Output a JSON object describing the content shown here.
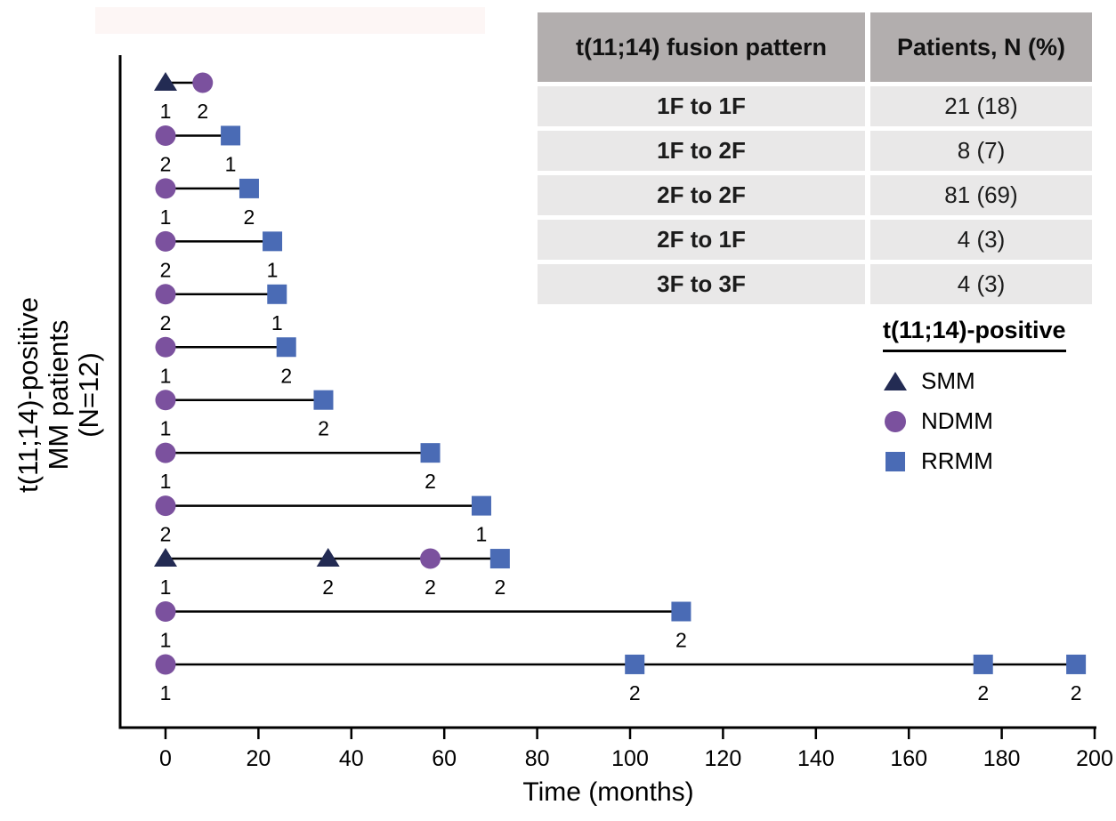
{
  "colors": {
    "smm_navy": "#232b53",
    "ndmm_purple": "#7b519e",
    "rrmm_blue": "#4a6bb5",
    "table_header_bg": "#b2aeae",
    "table_row_bg": "#e9e8e8",
    "axis_black": "#000000",
    "band_pink": "#fdf6f5"
  },
  "table": {
    "headers": [
      "t(11;14) fusion pattern",
      "Patients, N (%)"
    ],
    "rows": [
      [
        "1F to 1F",
        "21 (18)"
      ],
      [
        "1F to 2F",
        "8 (7)"
      ],
      [
        "2F to 2F",
        "81 (69)"
      ],
      [
        "2F to 1F",
        "4 (3)"
      ],
      [
        "3F to 3F",
        "4 (3)"
      ]
    ]
  },
  "legend": {
    "title": "t(11;14)-positive",
    "items": [
      {
        "label": "SMM",
        "marker": "triangle"
      },
      {
        "label": "NDMM",
        "marker": "circle"
      },
      {
        "label": "RRMM",
        "marker": "square"
      }
    ]
  },
  "chart_data": {
    "type": "scatter",
    "subtype": "swimmer-timeline",
    "x_label": "Time (months)",
    "y_label_lines": [
      "t(11;14)-positive",
      "MM patients",
      "(N=12)"
    ],
    "x_range": [
      0,
      200
    ],
    "x_ticks": [
      0,
      20,
      40,
      60,
      80,
      100,
      120,
      140,
      160,
      180,
      200
    ],
    "grid": false,
    "legend_position": "right",
    "marker_groups": {
      "triangle": "SMM",
      "circle": "NDMM",
      "square": "RRMM"
    },
    "patients": [
      {
        "events": [
          {
            "marker": "triangle",
            "month": 0,
            "label": "1"
          },
          {
            "marker": "circle",
            "month": 8,
            "label": "2"
          }
        ]
      },
      {
        "events": [
          {
            "marker": "circle",
            "month": 0,
            "label": "2"
          },
          {
            "marker": "square",
            "month": 14,
            "label": "1"
          }
        ]
      },
      {
        "events": [
          {
            "marker": "circle",
            "month": 0,
            "label": "1"
          },
          {
            "marker": "square",
            "month": 18,
            "label": "2"
          }
        ]
      },
      {
        "events": [
          {
            "marker": "circle",
            "month": 0,
            "label": "2"
          },
          {
            "marker": "square",
            "month": 23,
            "label": "1"
          }
        ]
      },
      {
        "events": [
          {
            "marker": "circle",
            "month": 0,
            "label": "2"
          },
          {
            "marker": "square",
            "month": 24,
            "label": "1"
          }
        ]
      },
      {
        "events": [
          {
            "marker": "circle",
            "month": 0,
            "label": "1"
          },
          {
            "marker": "square",
            "month": 26,
            "label": "2"
          }
        ]
      },
      {
        "events": [
          {
            "marker": "circle",
            "month": 0,
            "label": "1"
          },
          {
            "marker": "square",
            "month": 34,
            "label": "2"
          }
        ]
      },
      {
        "events": [
          {
            "marker": "circle",
            "month": 0,
            "label": "1"
          },
          {
            "marker": "square",
            "month": 57,
            "label": "2"
          }
        ]
      },
      {
        "events": [
          {
            "marker": "circle",
            "month": 0,
            "label": "2"
          },
          {
            "marker": "square",
            "month": 68,
            "label": "1"
          }
        ]
      },
      {
        "events": [
          {
            "marker": "triangle",
            "month": 0,
            "label": "1"
          },
          {
            "marker": "triangle",
            "month": 35,
            "label": "2"
          },
          {
            "marker": "circle",
            "month": 57,
            "label": "2"
          },
          {
            "marker": "square",
            "month": 72,
            "label": "2"
          }
        ]
      },
      {
        "events": [
          {
            "marker": "circle",
            "month": 0,
            "label": "1"
          },
          {
            "marker": "square",
            "month": 111,
            "label": "2"
          }
        ]
      },
      {
        "events": [
          {
            "marker": "circle",
            "month": 0,
            "label": "1"
          },
          {
            "marker": "square",
            "month": 101,
            "label": "2"
          },
          {
            "marker": "square",
            "month": 176,
            "label": "2"
          },
          {
            "marker": "square",
            "month": 196,
            "label": "2"
          }
        ]
      }
    ]
  }
}
